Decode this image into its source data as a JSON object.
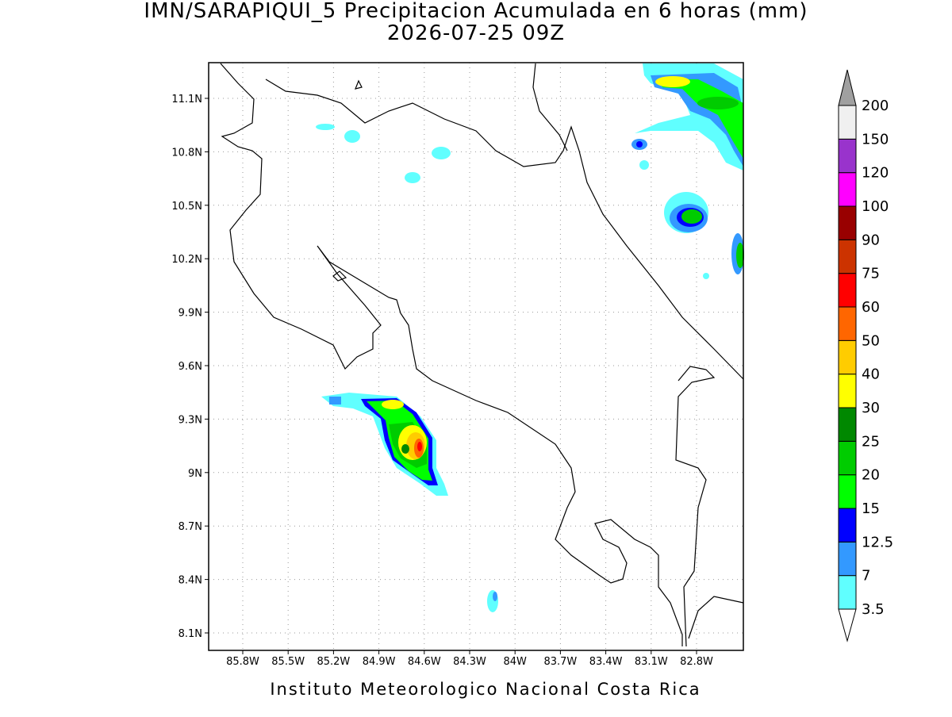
{
  "header": {
    "title": "IMN/SARAPIQUI_5 Precipitacion Acumulada en 6 horas (mm)",
    "subtitle": "2026-07-25 09Z"
  },
  "map": {
    "xticks": [
      "85.8W",
      "85.5W",
      "85.2W",
      "84.9W",
      "84.6W",
      "84.3W",
      "84W",
      "83.7W",
      "83.4W",
      "83.1W",
      "82.8W"
    ],
    "yticks": [
      "11.1N",
      "10.8N",
      "10.5N",
      "10.2N",
      "9.9N",
      "9.6N",
      "9.3N",
      "9N",
      "8.7N",
      "8.4N",
      "8.1N"
    ]
  },
  "colorbar": {
    "levels": [
      3.5,
      7,
      12.5,
      15,
      20,
      25,
      30,
      40,
      50,
      60,
      75,
      90,
      100,
      120,
      150,
      200
    ],
    "colors": [
      "#60ffff",
      "#3399ff",
      "#0000ff",
      "#00ff00",
      "#00cc00",
      "#008800",
      "#ffff00",
      "#ffcc00",
      "#ff6600",
      "#ff0000",
      "#cc3300",
      "#990000",
      "#ff00ff",
      "#9933cc",
      "#f0f0f0"
    ],
    "over_color": "#a0a0a0",
    "under_color": "#ffffff"
  },
  "footer": "Instituto Meteorologico Nacional Costa Rica"
}
